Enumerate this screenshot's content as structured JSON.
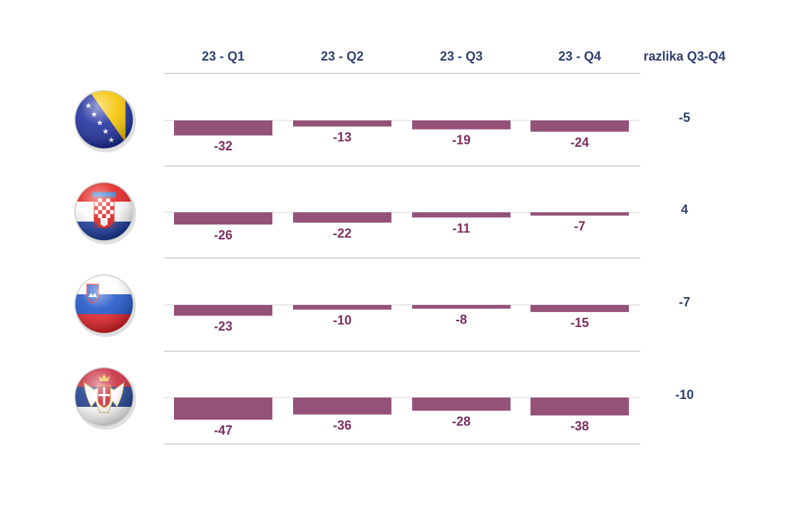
{
  "colors": {
    "bar": "#955279",
    "bar_label": "#7b2d5e",
    "header_text": "#2f3f6f",
    "diff_text": "#2f3f6f",
    "separator": "#d9d9d9",
    "baseline": "#e3e3e3"
  },
  "chart_data": {
    "type": "bar",
    "orientation": "vertical",
    "categories": [
      "23 - Q1",
      "23 - Q2",
      "23 - Q3",
      "23 - Q4"
    ],
    "diff_header": "razlika Q3-Q4",
    "grid": false,
    "legend": "none",
    "rows": [
      {
        "icon": "bosnia-flag-icon",
        "values": [
          -32,
          -13,
          -19,
          -24
        ],
        "diff": "-5"
      },
      {
        "icon": "croatia-flag-icon",
        "values": [
          -26,
          -22,
          -11,
          -7
        ],
        "diff": "4"
      },
      {
        "icon": "slovenia-flag-icon",
        "values": [
          -23,
          -10,
          -8,
          -15
        ],
        "diff": "-7"
      },
      {
        "icon": "serbia-flag-icon",
        "values": [
          -47,
          -36,
          -28,
          -38
        ],
        "diff": "-10"
      }
    ]
  }
}
